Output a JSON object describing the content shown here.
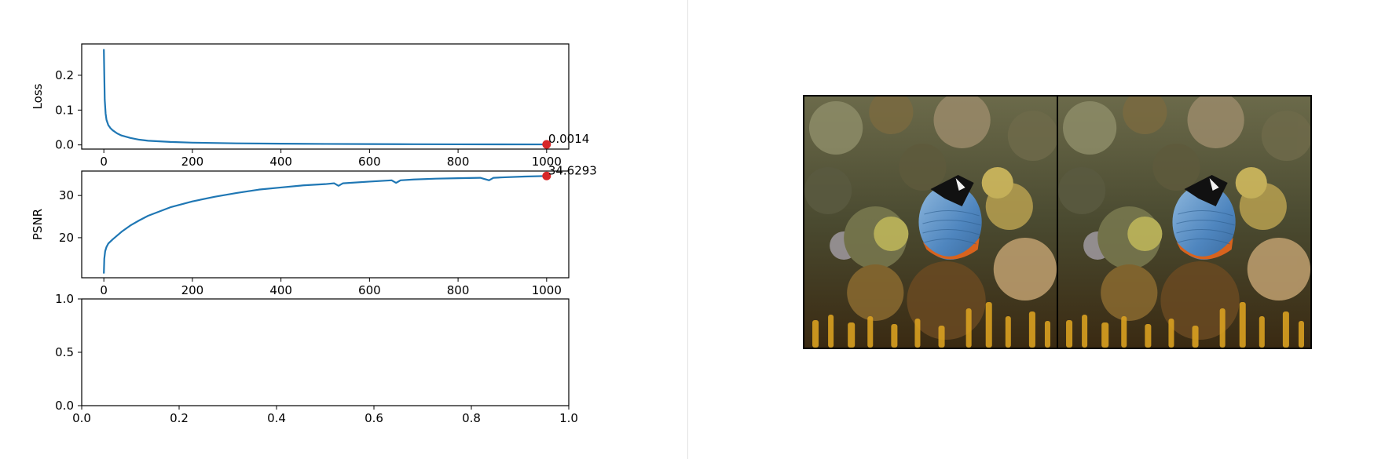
{
  "colors": {
    "line": "#1f77b4",
    "marker": "#d62728",
    "axis": "#000000",
    "divider": "#e3e3e3"
  },
  "images": [
    {
      "name": "left-coral-reef-butterflyfish"
    },
    {
      "name": "right-coral-reef-butterflyfish"
    }
  ],
  "chart_data": [
    {
      "type": "line",
      "ylabel": "Loss",
      "xlim": [
        -50,
        1050
      ],
      "ylim": [
        -0.012,
        0.29
      ],
      "xticks": [
        0,
        200,
        400,
        600,
        800,
        1000
      ],
      "yticks": [
        0.0,
        0.1,
        0.2
      ],
      "xtick_labels": [
        "0",
        "200",
        "400",
        "600",
        "800",
        "1000"
      ],
      "ytick_labels": [
        "0.0",
        "0.1",
        "0.2"
      ],
      "series": [
        {
          "x": [
            0,
            1,
            2,
            4,
            6,
            10,
            15,
            20,
            30,
            40,
            60,
            80,
            100,
            150,
            200,
            300,
            400,
            500,
            600,
            700,
            800,
            900,
            1000
          ],
          "values": [
            0.275,
            0.2,
            0.13,
            0.09,
            0.072,
            0.057,
            0.048,
            0.042,
            0.033,
            0.027,
            0.02,
            0.015,
            0.012,
            0.0085,
            0.0065,
            0.0045,
            0.0035,
            0.0028,
            0.0023,
            0.002,
            0.0017,
            0.0015,
            0.0014
          ]
        }
      ],
      "annotation": {
        "x": 1000,
        "y": 0.0014,
        "label": "0.0014"
      }
    },
    {
      "type": "line",
      "ylabel": "PSNR",
      "xlim": [
        -50,
        1050
      ],
      "ylim": [
        10.5,
        35.8
      ],
      "xticks": [
        0,
        200,
        400,
        600,
        800,
        1000
      ],
      "yticks": [
        20,
        30
      ],
      "xtick_labels": [
        "0",
        "200",
        "400",
        "600",
        "800",
        "1000"
      ],
      "ytick_labels": [
        "20",
        "30"
      ],
      "series": [
        {
          "x": [
            0,
            1,
            3,
            6,
            10,
            20,
            40,
            60,
            80,
            100,
            150,
            200,
            250,
            300,
            350,
            400,
            450,
            500,
            520,
            530,
            540,
            600,
            650,
            660,
            670,
            700,
            750,
            800,
            850,
            870,
            880,
            900,
            950,
            1000
          ],
          "values": [
            11.5,
            15.0,
            16.8,
            17.8,
            18.6,
            19.6,
            21.4,
            22.9,
            24.1,
            25.2,
            27.2,
            28.6,
            29.7,
            30.6,
            31.4,
            31.9,
            32.4,
            32.7,
            32.9,
            32.3,
            32.9,
            33.3,
            33.6,
            33.0,
            33.6,
            33.8,
            34.0,
            34.1,
            34.2,
            33.6,
            34.2,
            34.3,
            34.5,
            34.6293
          ]
        }
      ],
      "annotation": {
        "x": 1000,
        "y": 34.6293,
        "label": "34.6293"
      }
    },
    {
      "type": "line",
      "ylabel": "",
      "xlim": [
        0,
        1
      ],
      "ylim": [
        0,
        1
      ],
      "xticks": [
        0.0,
        0.2,
        0.4,
        0.6,
        0.8,
        1.0
      ],
      "yticks": [
        0.0,
        0.5,
        1.0
      ],
      "xtick_labels": [
        "0.0",
        "0.2",
        "0.4",
        "0.6",
        "0.8",
        "1.0"
      ],
      "ytick_labels": [
        "0.0",
        "0.5",
        "1.0"
      ],
      "series": []
    }
  ]
}
